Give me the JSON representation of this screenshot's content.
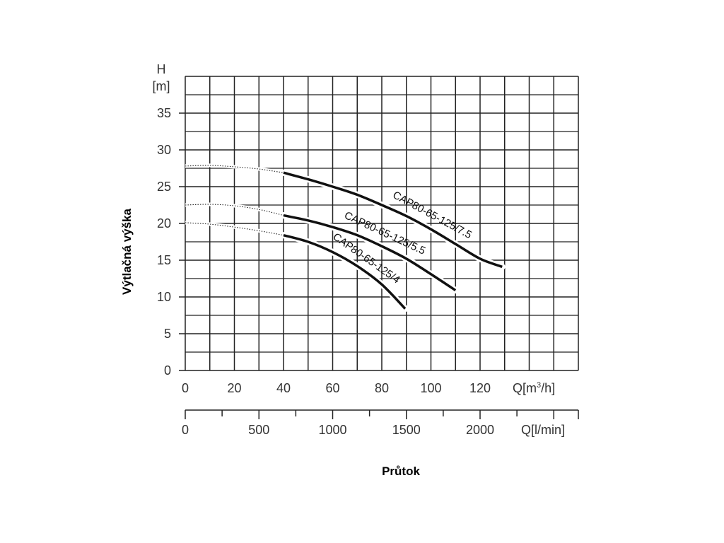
{
  "chart_data": {
    "type": "line",
    "ylabel": "Výtlačná výška",
    "xlabel": "Průtok",
    "y_axis": {
      "symbol": "H",
      "unit": "[m]",
      "ylim": [
        0,
        40
      ],
      "ticks": [
        0,
        5,
        10,
        15,
        20,
        25,
        30,
        35
      ],
      "tick_labels": [
        "0",
        "5",
        "10",
        "15",
        "20",
        "25",
        "30",
        "35"
      ],
      "minor_step": 2.5
    },
    "x_axis": {
      "unit_label": "Q[m",
      "unit_sup": "3",
      "unit_tail": "/h]",
      "xlim": [
        0,
        160
      ],
      "ticks": [
        0,
        20,
        40,
        60,
        80,
        100,
        120
      ],
      "tick_labels": [
        "0",
        "20",
        "40",
        "60",
        "80",
        "100",
        "120"
      ],
      "grid_step": 10
    },
    "x2_axis": {
      "unit_label": "Q[l/min]",
      "xlim": [
        0,
        2666.7
      ],
      "ticks": [
        0,
        500,
        1000,
        1500,
        2000
      ],
      "tick_labels": [
        "0",
        "500",
        "1000",
        "1500",
        "2000"
      ],
      "minor_step": 250
    },
    "grid": true,
    "series": [
      {
        "name": "CAP80-65-125/7.5",
        "dotted": [
          [
            0,
            27.8
          ],
          [
            10,
            27.9
          ],
          [
            20,
            27.7
          ],
          [
            30,
            27.4
          ],
          [
            40,
            26.9
          ]
        ],
        "solid": [
          [
            40,
            26.9
          ],
          [
            50,
            26.0
          ],
          [
            60,
            25.0
          ],
          [
            70,
            23.9
          ],
          [
            80,
            22.5
          ],
          [
            90,
            21.0
          ],
          [
            100,
            19.2
          ],
          [
            110,
            17.2
          ],
          [
            120,
            15.2
          ],
          [
            129,
            14.1
          ]
        ]
      },
      {
        "name": "CAP80-65-125/5.5",
        "dotted": [
          [
            0,
            22.5
          ],
          [
            10,
            22.6
          ],
          [
            20,
            22.4
          ],
          [
            30,
            21.9
          ],
          [
            40,
            21.1
          ]
        ],
        "solid": [
          [
            40,
            21.1
          ],
          [
            50,
            20.4
          ],
          [
            60,
            19.5
          ],
          [
            70,
            18.4
          ],
          [
            80,
            16.9
          ],
          [
            90,
            15.2
          ],
          [
            100,
            13.1
          ],
          [
            110,
            10.9
          ]
        ]
      },
      {
        "name": "CAP80-65-125/4",
        "dotted": [
          [
            0,
            20.1
          ],
          [
            10,
            19.9
          ],
          [
            20,
            19.5
          ],
          [
            30,
            19.0
          ],
          [
            40,
            18.4
          ]
        ],
        "solid": [
          [
            40,
            18.4
          ],
          [
            50,
            17.5
          ],
          [
            60,
            16.1
          ],
          [
            70,
            14.2
          ],
          [
            80,
            11.7
          ],
          [
            89.5,
            8.4
          ]
        ]
      }
    ],
    "curve_label_positions": [
      {
        "at_x": 98,
        "offset": -14
      },
      {
        "at_x": 79,
        "offset": -14
      },
      {
        "at_x": 71,
        "offset": -12
      }
    ]
  }
}
